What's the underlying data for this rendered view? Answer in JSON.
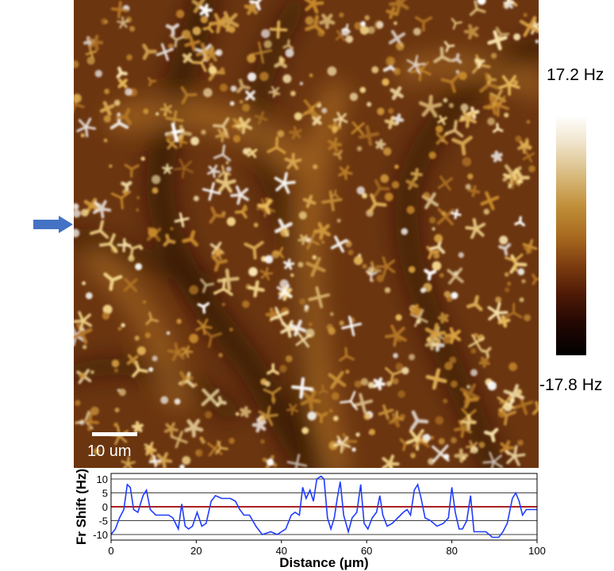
{
  "colorbar": {
    "max_label": "17.2 Hz",
    "min_label": "-17.8 Hz",
    "colors": [
      "#ffffff",
      "#d9bb7f",
      "#a86a1f",
      "#4f1a06",
      "#000000"
    ]
  },
  "scale_bar": {
    "label": "10 um"
  },
  "marker": {
    "color": "#4472c4",
    "icon": "arrow-right-icon"
  },
  "chart_data": {
    "type": "line",
    "xlabel": "Distance (μm)",
    "ylabel": "Fr Shift  (Hz)",
    "xlim": [
      0,
      100
    ],
    "ylim": [
      -12,
      12
    ],
    "xticks": [
      0,
      20,
      40,
      60,
      80,
      100
    ],
    "yticks": [
      10,
      5,
      0,
      -5,
      -10
    ],
    "grid": true,
    "reference_line": {
      "y": 0,
      "color": "#a00000"
    },
    "series": [
      {
        "color": "#1f3bff",
        "points": [
          [
            0,
            -10
          ],
          [
            1,
            -8
          ],
          [
            2,
            -4
          ],
          [
            3,
            -1
          ],
          [
            3.8,
            8
          ],
          [
            4.5,
            7
          ],
          [
            5.3,
            -1
          ],
          [
            6.3,
            -2
          ],
          [
            7.5,
            4
          ],
          [
            8.3,
            6
          ],
          [
            9.2,
            -1
          ],
          [
            10.5,
            -3
          ],
          [
            12,
            -3
          ],
          [
            13.5,
            -3
          ],
          [
            14.5,
            -4
          ],
          [
            15.8,
            -8
          ],
          [
            16.6,
            1
          ],
          [
            17.4,
            -7
          ],
          [
            18.2,
            -8
          ],
          [
            19.1,
            -7
          ],
          [
            20.2,
            -2
          ],
          [
            21.3,
            -7
          ],
          [
            22.3,
            -6
          ],
          [
            23.5,
            2
          ],
          [
            24.5,
            4
          ],
          [
            26,
            3
          ],
          [
            28,
            3
          ],
          [
            29.2,
            2
          ],
          [
            30.2,
            -1
          ],
          [
            31.2,
            -3
          ],
          [
            32.5,
            -3
          ],
          [
            34,
            -7
          ],
          [
            35.5,
            -10
          ],
          [
            37.5,
            -9
          ],
          [
            39,
            -10
          ],
          [
            41,
            -8
          ],
          [
            42.3,
            -3
          ],
          [
            43.2,
            -2
          ],
          [
            44.2,
            -3
          ],
          [
            45,
            7
          ],
          [
            45.8,
            3
          ],
          [
            46.7,
            6
          ],
          [
            47.5,
            2
          ],
          [
            48.3,
            10
          ],
          [
            49.3,
            11
          ],
          [
            50,
            10
          ],
          [
            50.8,
            -4
          ],
          [
            51.6,
            -8
          ],
          [
            52.4,
            -4
          ],
          [
            53.1,
            3
          ],
          [
            53.8,
            9
          ],
          [
            54.6,
            -3
          ],
          [
            55.7,
            -9
          ],
          [
            56.6,
            -4
          ],
          [
            57.7,
            -2
          ],
          [
            58.6,
            8
          ],
          [
            59.4,
            -6
          ],
          [
            60.3,
            -8
          ],
          [
            61.3,
            -4
          ],
          [
            62.3,
            -2
          ],
          [
            63.1,
            4
          ],
          [
            63.8,
            -3
          ],
          [
            64.8,
            -7
          ],
          [
            66,
            -6
          ],
          [
            67.3,
            -4
          ],
          [
            68.6,
            -2
          ],
          [
            69.5,
            -1
          ],
          [
            70.3,
            -3
          ],
          [
            71.2,
            6
          ],
          [
            72,
            8
          ],
          [
            72.8,
            3
          ],
          [
            73.7,
            -4
          ],
          [
            75,
            -5
          ],
          [
            76.5,
            -7
          ],
          [
            78,
            -6
          ],
          [
            79.2,
            -4
          ],
          [
            80,
            7
          ],
          [
            80.8,
            -2
          ],
          [
            81.7,
            -8
          ],
          [
            82.5,
            -8
          ],
          [
            83.5,
            -5
          ],
          [
            84.4,
            4
          ],
          [
            85.2,
            -9
          ],
          [
            86.5,
            -9
          ],
          [
            88,
            -9
          ],
          [
            89.5,
            -11
          ],
          [
            91,
            -11
          ],
          [
            92,
            -9
          ],
          [
            93,
            -6
          ],
          [
            94.2,
            3
          ],
          [
            95,
            5
          ],
          [
            95.8,
            2
          ],
          [
            96.6,
            -3
          ],
          [
            97.5,
            -1
          ],
          [
            98.5,
            -1
          ],
          [
            100,
            -1
          ]
        ]
      }
    ]
  }
}
